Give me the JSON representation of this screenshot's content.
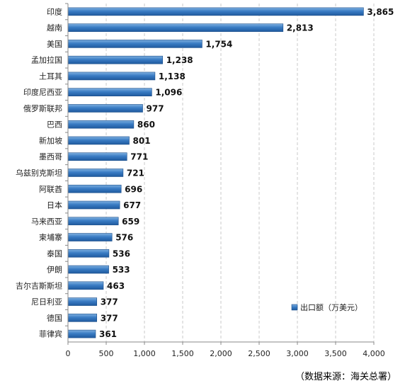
{
  "chart_data": {
    "type": "bar",
    "orientation": "horizontal",
    "categories": [
      "印度",
      "越南",
      "美国",
      "孟加拉国",
      "土耳其",
      "印度尼西亚",
      "俄罗斯联邦",
      "巴西",
      "新加坡",
      "墨西哥",
      "乌兹别克斯坦",
      "阿联酋",
      "日本",
      "马来西亚",
      "柬埔寨",
      "泰国",
      "伊朗",
      "吉尔吉斯斯坦",
      "尼日利亚",
      "德国",
      "菲律宾"
    ],
    "series": [
      {
        "name": "出口额（万美元）",
        "values": [
          3865,
          2813,
          1754,
          1238,
          1138,
          1096,
          977,
          860,
          801,
          771,
          721,
          696,
          677,
          659,
          576,
          536,
          533,
          463,
          377,
          377,
          361
        ],
        "labels": [
          "3,865",
          "2,813",
          "1,754",
          "1,238",
          "1,138",
          "1,096",
          "977",
          "860",
          "801",
          "771",
          "721",
          "696",
          "677",
          "659",
          "576",
          "536",
          "533",
          "463",
          "377",
          "377",
          "361"
        ]
      }
    ],
    "xlim": [
      0,
      4000
    ],
    "xticks": [
      0,
      500,
      1000,
      1500,
      2000,
      2500,
      3000,
      3500,
      4000
    ],
    "xtick_labels": [
      "0",
      "500",
      "1,000",
      "1,500",
      "2,000",
      "2,500",
      "3,000",
      "3,500",
      "4,000"
    ],
    "grid": "vertical-dashed",
    "legend_position": "bottom-right",
    "colors": {
      "bar": "#2e6cb0",
      "bar_light": "#6aa1d8",
      "grid": "#c8c8c8",
      "axis": "#888888"
    }
  },
  "source_note": "（数据来源：海关总署）"
}
